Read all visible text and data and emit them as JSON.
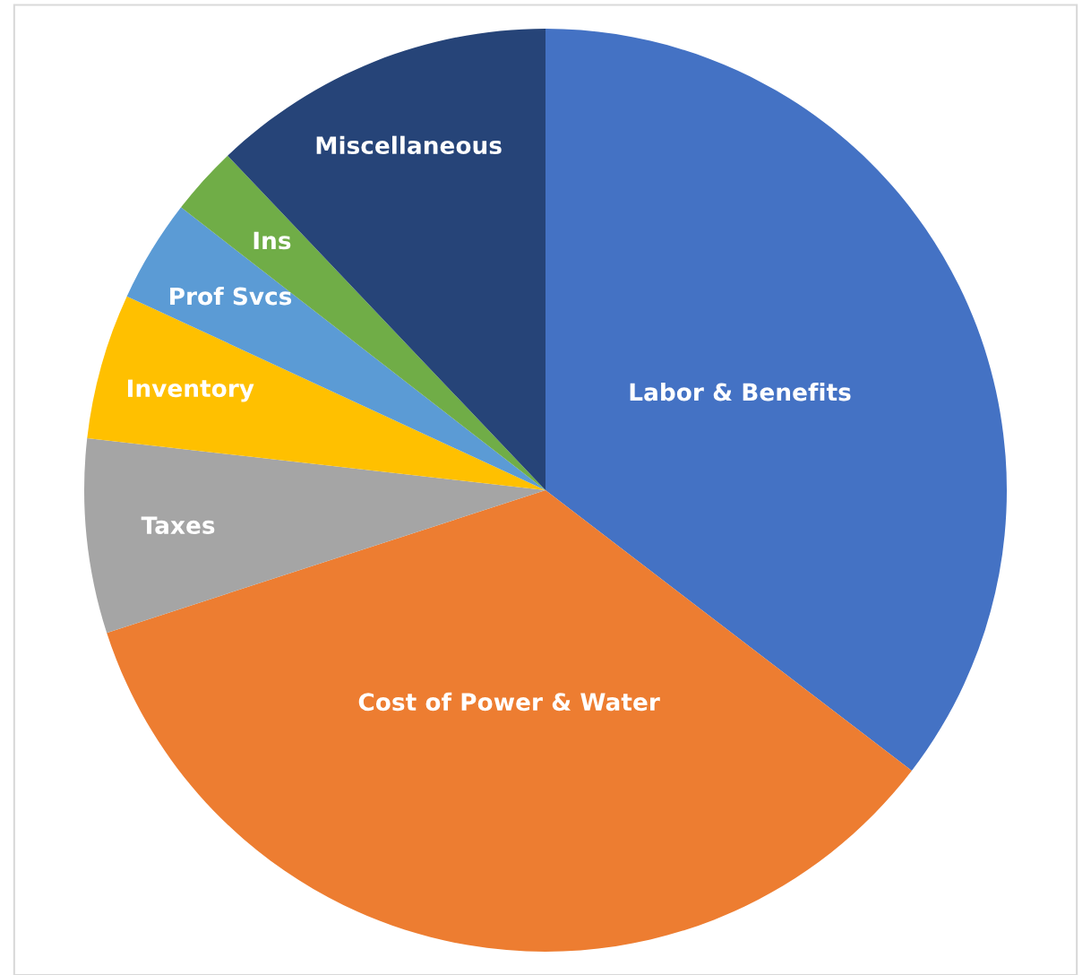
{
  "chart_data": {
    "type": "pie",
    "categories": [
      "Labor & Benefits",
      "Cost of Power & Water",
      "Taxes",
      "Inventory",
      "Prof Svcs",
      "Ins",
      "Miscellaneous"
    ],
    "values": [
      35.4,
      34.6,
      6.8,
      5.1,
      3.6,
      2.4,
      12.1
    ],
    "colors": [
      "#4472c4",
      "#ed7d31",
      "#a5a5a5",
      "#ffc000",
      "#5b9bd5",
      "#70ad47",
      "#264478"
    ],
    "legend": false
  }
}
